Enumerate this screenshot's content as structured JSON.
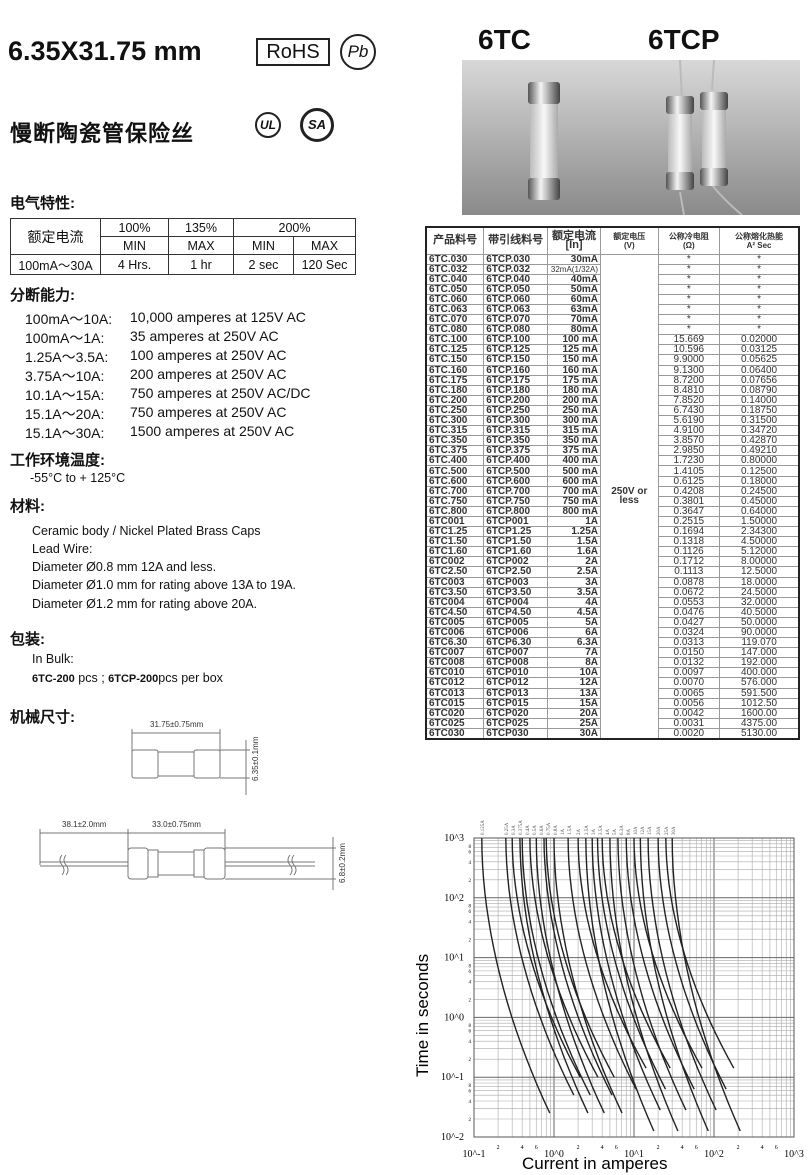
{
  "header": {
    "size_title": "6.35X31.75 mm",
    "rohs": "RoHS",
    "pb": "Pb",
    "model_a": "6TC",
    "model_b": "6TCP"
  },
  "subtitle": "慢断陶瓷管保险丝",
  "certs": {
    "ul": "UL",
    "csa": "SA"
  },
  "electrical": {
    "heading": "电气特性:",
    "rated_current_label": "额定电流",
    "pct": [
      "100%",
      "135%",
      "200%"
    ],
    "sub": [
      "MIN",
      "MAX",
      "MIN",
      "MAX"
    ],
    "values": [
      "100mA～30A",
      "4 Hrs.",
      "1 hr",
      "2 sec",
      "120 Sec"
    ]
  },
  "breaking": {
    "heading": "分断能力:",
    "rows": [
      [
        "100mA～10A:",
        "10,000 amperes at 125V AC"
      ],
      [
        "100mA～1A:",
        "35 amperes at 250V AC"
      ],
      [
        "1.25A～3.5A:",
        "100 amperes at 250V AC"
      ],
      [
        "3.75A～10A:",
        "200 amperes at 250V AC"
      ],
      [
        "10.1A～15A:",
        "750 amperes at 250V AC/DC"
      ],
      [
        "15.1A～20A:",
        "750 amperes at 250V AC"
      ],
      [
        "15.1A～30A:",
        "1500 amperes at 250V AC"
      ]
    ]
  },
  "temperature": {
    "heading": "工作环境温度:",
    "value": "-55°C to + 125°C"
  },
  "material": {
    "heading": "材料:",
    "lines": [
      "Ceramic body / Nickel Plated Brass Caps",
      "Lead Wire:",
      "Diameter Ø0.8 mm 12A and less.",
      "Diameter Ø1.0 mm for rating above 13A to 19A.",
      "Diameter Ø1.2 mm for rating above 20A."
    ]
  },
  "packing": {
    "heading": "包装:",
    "bulk": "In Bulk:",
    "a": "6TC-200",
    "b": " pcs ; ",
    "c": "6TCP-200",
    "d": "pcs per box"
  },
  "dimensions": {
    "heading": "机械尺寸:",
    "length": "31.75±0.75mm",
    "diameter": "6.35±0.1mm",
    "lead_length": "38.1±2.0mm",
    "body_length": "33.0±0.75mm",
    "cap_diameter": "6.8±0.2mm"
  },
  "spec_table": {
    "headers": [
      "产品料号",
      "带引线料号",
      "额定电流\n[In]",
      "额定电压\n(V)",
      "公称冷电阻\n(Ω)",
      "公称熔化热能\nA² Sec"
    ],
    "voltage": "250V or less",
    "rows": [
      [
        "6TC.030",
        "6TCP.030",
        "30mA",
        "*",
        "*"
      ],
      [
        "6TC.032",
        "6TCP.032",
        "32mA(1/32A)",
        "*",
        "*"
      ],
      [
        "6TC.040",
        "6TCP.040",
        "40mA",
        "*",
        "*"
      ],
      [
        "6TC.050",
        "6TCP.050",
        "50mA",
        "*",
        "*"
      ],
      [
        "6TC.060",
        "6TCP.060",
        "60mA",
        "*",
        "*"
      ],
      [
        "6TC.063",
        "6TCP.063",
        "63mA",
        "*",
        "*"
      ],
      [
        "6TC.070",
        "6TCP.070",
        "70mA",
        "*",
        "*"
      ],
      [
        "6TC.080",
        "6TCP.080",
        "80mA",
        "*",
        "*"
      ],
      [
        "6TC.100",
        "6TCP.100",
        "100 mA",
        "15.669",
        "0.02000"
      ],
      [
        "6TC.125",
        "6TCP.125",
        "125 mA",
        "10.596",
        "0.03125"
      ],
      [
        "6TC.150",
        "6TCP.150",
        "150 mA",
        "9.9000",
        "0.05625"
      ],
      [
        "6TC.160",
        "6TCP.160",
        "160 mA",
        "9.1300",
        "0.06400"
      ],
      [
        "6TC.175",
        "6TCP.175",
        "175 mA",
        "8.7200",
        "0.07656"
      ],
      [
        "6TC.180",
        "6TCP.180",
        "180 mA",
        "8.4810",
        "0.08790"
      ],
      [
        "6TC.200",
        "6TCP.200",
        "200 mA",
        "7.8520",
        "0.14000"
      ],
      [
        "6TC.250",
        "6TCP.250",
        "250 mA",
        "6.7430",
        "0.18750"
      ],
      [
        "6TC.300",
        "6TCP.300",
        "300 mA",
        "5.6190",
        "0.31500"
      ],
      [
        "6TC.315",
        "6TCP.315",
        "315 mA",
        "4.9100",
        "0.34720"
      ],
      [
        "6TC.350",
        "6TCP.350",
        "350 mA",
        "3.8570",
        "0.42870"
      ],
      [
        "6TC.375",
        "6TCP.375",
        "375 mA",
        "2.9850",
        "0.49210"
      ],
      [
        "6TC.400",
        "6TCP.400",
        "400 mA",
        "1.7230",
        "0.80000"
      ],
      [
        "6TC.500",
        "6TCP.500",
        "500 mA",
        "1.4105",
        "0.12500"
      ],
      [
        "6TC.600",
        "6TCP.600",
        "600 mA",
        "0.6125",
        "0.18000"
      ],
      [
        "6TC.700",
        "6TCP.700",
        "700 mA",
        "0.4208",
        "0.24500"
      ],
      [
        "6TC.750",
        "6TCP.750",
        "750 mA",
        "0.3801",
        "0.45000"
      ],
      [
        "6TC.800",
        "6TCP.800",
        "800 mA",
        "0.3647",
        "0.64000"
      ],
      [
        "6TC001",
        "6TCP001",
        "1A",
        "0.2515",
        "1.50000"
      ],
      [
        "6TC1.25",
        "6TCP1.25",
        "1.25A",
        "0.1694",
        "2.34300"
      ],
      [
        "6TC1.50",
        "6TCP1.50",
        "1.5A",
        "0.1318",
        "4.50000"
      ],
      [
        "6TC1.60",
        "6TCP1.60",
        "1.6A",
        "0.1126",
        "5.12000"
      ],
      [
        "6TC002",
        "6TCP002",
        "2A",
        "0.1712",
        "8.00000"
      ],
      [
        "6TC2.50",
        "6TCP2.50",
        "2.5A",
        "0.1113",
        "12.5000"
      ],
      [
        "6TC003",
        "6TCP003",
        "3A",
        "0.0878",
        "18.0000"
      ],
      [
        "6TC3.50",
        "6TCP3.50",
        "3.5A",
        "0.0672",
        "24.5000"
      ],
      [
        "6TC004",
        "6TCP004",
        "4A",
        "0.0553",
        "32.0000"
      ],
      [
        "6TC4.50",
        "6TCP4.50",
        "4.5A",
        "0.0476",
        "40.5000"
      ],
      [
        "6TC005",
        "6TCP005",
        "5A",
        "0.0427",
        "50.0000"
      ],
      [
        "6TC006",
        "6TCP006",
        "6A",
        "0.0324",
        "90.0000"
      ],
      [
        "6TC6.30",
        "6TCP6.30",
        "6.3A",
        "0.0313",
        "119.070"
      ],
      [
        "6TC007",
        "6TCP007",
        "7A",
        "0.0150",
        "147.000"
      ],
      [
        "6TC008",
        "6TCP008",
        "8A",
        "0.0132",
        "192.000"
      ],
      [
        "6TC010",
        "6TCP010",
        "10A",
        "0.0097",
        "400.000"
      ],
      [
        "6TC012",
        "6TCP012",
        "12A",
        "0.0070",
        "576.000"
      ],
      [
        "6TC013",
        "6TCP013",
        "13A",
        "0.0065",
        "591.500"
      ],
      [
        "6TC015",
        "6TCP015",
        "15A",
        "0.0056",
        "1012.50"
      ],
      [
        "6TC020",
        "6TCP020",
        "20A",
        "0.0042",
        "1600.00"
      ],
      [
        "6TC025",
        "6TCP025",
        "25A",
        "0.0031",
        "4375.00"
      ],
      [
        "6TC030",
        "6TCP030",
        "30A",
        "0.0020",
        "5130.00"
      ]
    ]
  },
  "chart_data": {
    "type": "line",
    "xlabel": "Current in amperes",
    "ylabel": "Time in seconds",
    "x_scale": "log",
    "y_scale": "log",
    "xlim": [
      0.1,
      1000
    ],
    "ylim": [
      0.01,
      1000
    ],
    "grid": true,
    "x_major_ticks": [
      "10^-1",
      "10^0",
      "10^1",
      "10^2",
      "10^3"
    ],
    "x_minor_tick_labels": [
      "2",
      "4",
      "6"
    ],
    "y_major_ticks": [
      "10^3",
      "10^2",
      "10^1",
      "10^0",
      "10^-1",
      "10^-2"
    ],
    "y_minor_tick_labels": [
      "2",
      "4",
      "6",
      "8"
    ],
    "ratings": [
      0.125,
      0.25,
      0.3,
      0.375,
      0.4,
      0.5,
      0.6,
      0.75,
      0.8,
      1,
      1.5,
      2,
      2.5,
      3,
      3.5,
      4,
      5,
      6.3,
      8,
      10,
      12,
      15,
      20,
      25,
      30
    ]
  }
}
